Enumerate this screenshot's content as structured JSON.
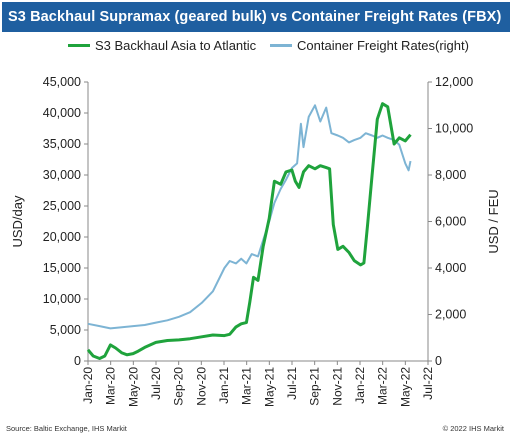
{
  "colors": {
    "title_bg": "#1f5fa0",
    "green": "#1fa33c",
    "blue": "#7db4d4",
    "axis": "#888888"
  },
  "chart_data": {
    "type": "line",
    "title": "S3 Backhaul Supramax (geared bulk) vs Container Freight Rates (FBX)",
    "ylabel": "USD/day",
    "ylabel_right": "USD / FEU",
    "ylim": [
      0,
      45000
    ],
    "ylim_right": [
      0,
      12000
    ],
    "y_ticks": [
      "0",
      "5,000",
      "10,000",
      "15,000",
      "20,000",
      "25,000",
      "30,000",
      "35,000",
      "40,000",
      "45,000"
    ],
    "y_ticks_right": [
      "0",
      "2,000",
      "4,000",
      "6,000",
      "8,000",
      "10,000",
      "12,000"
    ],
    "x_ticks": [
      "Jan-20",
      "Mar-20",
      "May-20",
      "Jul-20",
      "Sep-20",
      "Nov-20",
      "Jan-21",
      "Mar-21",
      "May-21",
      "Jul-21",
      "Sep-21",
      "Nov-21",
      "Jan-22",
      "Mar-22",
      "May-22",
      "Jul-22"
    ],
    "x_range": [
      "2020-01-01",
      "2022-07-01"
    ],
    "series": [
      {
        "name": "S3 Backhaul Asia to Atlantic",
        "axis": "left",
        "points": [
          [
            "2020-01-01",
            1800
          ],
          [
            "2020-01-15",
            800
          ],
          [
            "2020-02-01",
            400
          ],
          [
            "2020-02-15",
            800
          ],
          [
            "2020-03-01",
            2600
          ],
          [
            "2020-03-15",
            2100
          ],
          [
            "2020-04-01",
            1300
          ],
          [
            "2020-04-15",
            1000
          ],
          [
            "2020-05-01",
            1200
          ],
          [
            "2020-05-15",
            1600
          ],
          [
            "2020-06-01",
            2200
          ],
          [
            "2020-07-01",
            3000
          ],
          [
            "2020-08-01",
            3300
          ],
          [
            "2020-09-01",
            3400
          ],
          [
            "2020-10-01",
            3600
          ],
          [
            "2020-11-01",
            3900
          ],
          [
            "2020-12-01",
            4200
          ],
          [
            "2021-01-01",
            4100
          ],
          [
            "2021-01-15",
            4300
          ],
          [
            "2021-02-01",
            5500
          ],
          [
            "2021-02-15",
            6000
          ],
          [
            "2021-03-01",
            6200
          ],
          [
            "2021-03-10",
            9500
          ],
          [
            "2021-03-20",
            13500
          ],
          [
            "2021-04-01",
            13000
          ],
          [
            "2021-04-15",
            18500
          ],
          [
            "2021-05-01",
            23000
          ],
          [
            "2021-05-15",
            29000
          ],
          [
            "2021-06-01",
            28500
          ],
          [
            "2021-06-15",
            30500
          ],
          [
            "2021-07-01",
            30800
          ],
          [
            "2021-07-10",
            29000
          ],
          [
            "2021-07-20",
            28000
          ],
          [
            "2021-08-01",
            30500
          ],
          [
            "2021-08-15",
            31500
          ],
          [
            "2021-09-01",
            31000
          ],
          [
            "2021-09-15",
            31500
          ],
          [
            "2021-10-01",
            31200
          ],
          [
            "2021-10-10",
            31000
          ],
          [
            "2021-10-20",
            22000
          ],
          [
            "2021-11-01",
            18000
          ],
          [
            "2021-11-15",
            18500
          ],
          [
            "2021-12-01",
            17500
          ],
          [
            "2021-12-15",
            16200
          ],
          [
            "2022-01-01",
            15500
          ],
          [
            "2022-01-10",
            15800
          ],
          [
            "2022-01-20",
            22000
          ],
          [
            "2022-02-01",
            30000
          ],
          [
            "2022-02-15",
            39000
          ],
          [
            "2022-03-01",
            41500
          ],
          [
            "2022-03-15",
            41000
          ],
          [
            "2022-04-01",
            35000
          ],
          [
            "2022-04-15",
            36000
          ],
          [
            "2022-05-01",
            35500
          ],
          [
            "2022-05-15",
            36500
          ]
        ]
      },
      {
        "name": "Container Freight Rates(right)",
        "axis": "right",
        "points": [
          [
            "2020-01-01",
            1600
          ],
          [
            "2020-02-01",
            1500
          ],
          [
            "2020-03-01",
            1400
          ],
          [
            "2020-04-01",
            1450
          ],
          [
            "2020-05-01",
            1500
          ],
          [
            "2020-06-01",
            1550
          ],
          [
            "2020-07-01",
            1650
          ],
          [
            "2020-08-01",
            1750
          ],
          [
            "2020-09-01",
            1900
          ],
          [
            "2020-10-01",
            2100
          ],
          [
            "2020-11-01",
            2500
          ],
          [
            "2020-12-01",
            3000
          ],
          [
            "2021-01-01",
            4000
          ],
          [
            "2021-01-15",
            4300
          ],
          [
            "2021-02-01",
            4200
          ],
          [
            "2021-02-15",
            4400
          ],
          [
            "2021-03-01",
            4200
          ],
          [
            "2021-03-15",
            4600
          ],
          [
            "2021-04-01",
            4500
          ],
          [
            "2021-04-15",
            5200
          ],
          [
            "2021-05-01",
            6000
          ],
          [
            "2021-05-15",
            6800
          ],
          [
            "2021-06-01",
            7400
          ],
          [
            "2021-06-15",
            7800
          ],
          [
            "2021-07-01",
            8300
          ],
          [
            "2021-07-15",
            8500
          ],
          [
            "2021-07-25",
            10200
          ],
          [
            "2021-08-01",
            9200
          ],
          [
            "2021-08-15",
            10500
          ],
          [
            "2021-09-01",
            11000
          ],
          [
            "2021-09-15",
            10300
          ],
          [
            "2021-10-01",
            10900
          ],
          [
            "2021-10-15",
            9800
          ],
          [
            "2021-11-01",
            9700
          ],
          [
            "2021-11-15",
            9600
          ],
          [
            "2021-12-01",
            9400
          ],
          [
            "2021-12-15",
            9500
          ],
          [
            "2022-01-01",
            9600
          ],
          [
            "2022-01-15",
            9800
          ],
          [
            "2022-02-01",
            9700
          ],
          [
            "2022-02-15",
            9600
          ],
          [
            "2022-03-01",
            9700
          ],
          [
            "2022-03-15",
            9600
          ],
          [
            "2022-04-01",
            9500
          ],
          [
            "2022-04-15",
            9300
          ],
          [
            "2022-05-01",
            8500
          ],
          [
            "2022-05-10",
            8200
          ],
          [
            "2022-05-15",
            8600
          ]
        ]
      }
    ]
  },
  "footer": {
    "source": "Source: Baltic Exchange, IHS Markit",
    "copyright": "© 2022 IHS Markit"
  }
}
